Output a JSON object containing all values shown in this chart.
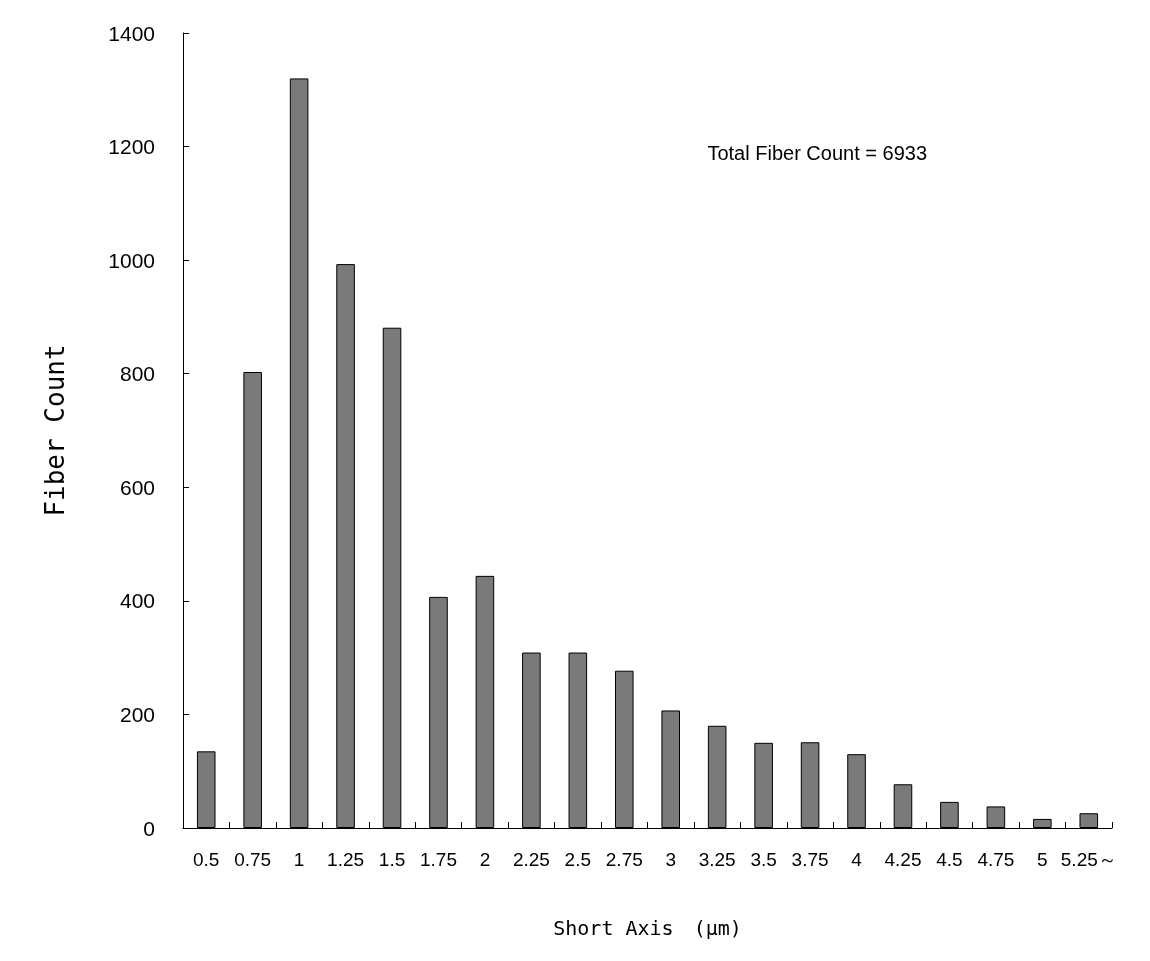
{
  "chart_data": {
    "type": "bar",
    "xlabel": "Short Axis　(μm)",
    "ylabel": "Fiber Count",
    "annotations": [
      "Total Fiber Count = 6933"
    ],
    "categories": [
      "0.5",
      "0.75",
      "1",
      "1.25",
      "1.5",
      "1.75",
      "2",
      "2.25",
      "2.5",
      "2.75",
      "3",
      "3.25",
      "3.5",
      "3.75",
      "4",
      "4.25",
      "4.5",
      "4.75",
      "5",
      "5.25～"
    ],
    "values": [
      135,
      803,
      1320,
      993,
      881,
      407,
      444,
      309,
      309,
      277,
      207,
      180,
      150,
      151,
      130,
      77,
      46,
      38,
      16,
      26
    ],
    "color": "#7a7a7a",
    "ylim": [
      0,
      1400
    ],
    "yticks": [
      0,
      200,
      400,
      600,
      800,
      1000,
      1200,
      1400
    ],
    "grid": false
  }
}
